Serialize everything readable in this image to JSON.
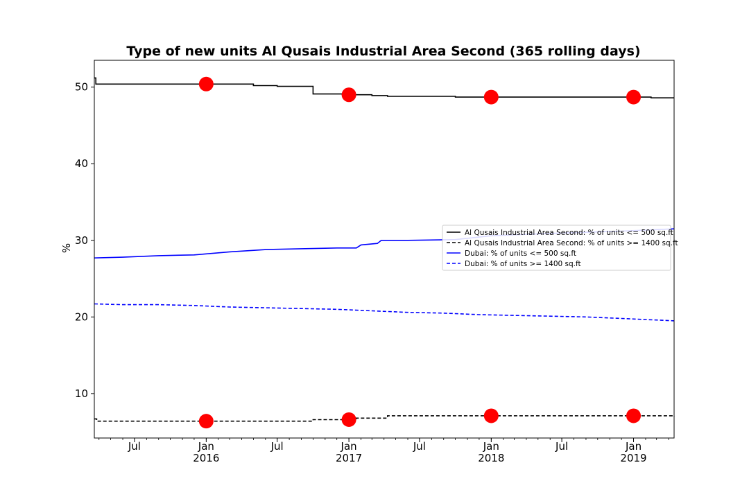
{
  "chart_data": {
    "type": "line",
    "title": "Type of new units Al Qusais Industrial Area Second (365 rolling days)",
    "xlabel": "",
    "ylabel": "%",
    "xlim": [
      "2015-03-20",
      "2019-04-15"
    ],
    "ylim": [
      4.2,
      53.5
    ],
    "grid": false,
    "legend_position": "right",
    "y_ticks": [
      10,
      20,
      30,
      40,
      50
    ],
    "x_ticks": [
      {
        "date": "2015-07-01",
        "label": "Jul",
        "year": ""
      },
      {
        "date": "2016-01-01",
        "label": "Jan",
        "year": "2016"
      },
      {
        "date": "2016-07-01",
        "label": "Jul",
        "year": ""
      },
      {
        "date": "2017-01-01",
        "label": "Jan",
        "year": "2017"
      },
      {
        "date": "2017-07-01",
        "label": "Jul",
        "year": ""
      },
      {
        "date": "2018-01-01",
        "label": "Jan",
        "year": "2018"
      },
      {
        "date": "2018-07-01",
        "label": "Jul",
        "year": ""
      },
      {
        "date": "2019-01-01",
        "label": "Jan",
        "year": "2019"
      }
    ],
    "series": [
      {
        "name": "Al Qusais Industrial Area Second: % of units <= 500 sq.ft",
        "color": "#000000",
        "dash": "solid",
        "step": true,
        "points": [
          [
            "2015-03-20",
            51.2
          ],
          [
            "2015-03-24",
            50.4
          ],
          [
            "2015-06-01",
            50.4
          ],
          [
            "2015-10-01",
            50.4
          ],
          [
            "2016-01-01",
            50.4
          ],
          [
            "2016-03-01",
            50.4
          ],
          [
            "2016-05-01",
            50.2
          ],
          [
            "2016-07-01",
            50.1
          ],
          [
            "2016-09-22",
            50.1
          ],
          [
            "2016-10-01",
            49.1
          ],
          [
            "2016-12-15",
            49.0
          ],
          [
            "2017-03-01",
            48.9
          ],
          [
            "2017-04-10",
            48.8
          ],
          [
            "2017-10-01",
            48.7
          ],
          [
            "2018-01-01",
            48.7
          ],
          [
            "2018-07-01",
            48.7
          ],
          [
            "2019-01-01",
            48.7
          ],
          [
            "2019-02-15",
            48.6
          ],
          [
            "2019-04-15",
            48.6
          ]
        ]
      },
      {
        "name": "Al Qusais Industrial Area Second: % of units >= 1400 sq.ft",
        "color": "#000000",
        "dash": "dashed",
        "step": true,
        "points": [
          [
            "2015-03-20",
            6.7
          ],
          [
            "2015-03-26",
            6.4
          ],
          [
            "2016-01-01",
            6.4
          ],
          [
            "2016-06-01",
            6.4
          ],
          [
            "2016-09-28",
            6.4
          ],
          [
            "2016-10-01",
            6.6
          ],
          [
            "2017-01-01",
            6.6
          ],
          [
            "2017-01-20",
            6.8
          ],
          [
            "2017-04-05",
            6.8
          ],
          [
            "2017-04-10",
            7.1
          ],
          [
            "2018-01-01",
            7.1
          ],
          [
            "2019-01-01",
            7.1
          ],
          [
            "2019-04-15",
            7.0
          ]
        ]
      },
      {
        "name": "Dubai: % of units <= 500 sq.ft",
        "color": "#0000ff",
        "dash": "solid",
        "step": false,
        "points": [
          [
            "2015-03-20",
            27.7
          ],
          [
            "2015-06-01",
            27.8
          ],
          [
            "2015-09-01",
            28.0
          ],
          [
            "2015-12-01",
            28.1
          ],
          [
            "2016-03-01",
            28.5
          ],
          [
            "2016-06-01",
            28.8
          ],
          [
            "2016-09-01",
            28.9
          ],
          [
            "2016-12-01",
            29.0
          ],
          [
            "2017-01-20",
            29.0
          ],
          [
            "2017-02-01",
            29.4
          ],
          [
            "2017-03-15",
            29.6
          ],
          [
            "2017-03-25",
            30.0
          ],
          [
            "2017-06-01",
            30.0
          ],
          [
            "2017-10-01",
            30.1
          ],
          [
            "2018-01-01",
            30.6
          ],
          [
            "2018-06-01",
            30.9
          ],
          [
            "2018-12-01",
            31.2
          ],
          [
            "2019-04-15",
            31.5
          ]
        ]
      },
      {
        "name": "Dubai: % of units >= 1400 sq.ft",
        "color": "#0000ff",
        "dash": "dashed",
        "step": false,
        "points": [
          [
            "2015-03-20",
            21.7
          ],
          [
            "2015-06-01",
            21.6
          ],
          [
            "2015-09-01",
            21.6
          ],
          [
            "2015-12-01",
            21.5
          ],
          [
            "2016-03-01",
            21.3
          ],
          [
            "2016-06-01",
            21.2
          ],
          [
            "2016-09-01",
            21.1
          ],
          [
            "2016-12-01",
            21.0
          ],
          [
            "2017-03-01",
            20.8
          ],
          [
            "2017-06-01",
            20.6
          ],
          [
            "2017-09-01",
            20.5
          ],
          [
            "2017-12-01",
            20.3
          ],
          [
            "2018-03-01",
            20.2
          ],
          [
            "2018-06-01",
            20.1
          ],
          [
            "2018-09-01",
            20.0
          ],
          [
            "2018-12-01",
            19.8
          ],
          [
            "2019-04-15",
            19.5
          ]
        ]
      }
    ],
    "markers": {
      "color": "#ff0000",
      "points": [
        [
          "2016-01-01",
          50.4
        ],
        [
          "2017-01-01",
          49.0
        ],
        [
          "2018-01-01",
          48.7
        ],
        [
          "2019-01-01",
          48.7
        ],
        [
          "2016-01-01",
          6.4
        ],
        [
          "2017-01-01",
          6.6
        ],
        [
          "2018-01-01",
          7.1
        ],
        [
          "2019-01-01",
          7.1
        ]
      ]
    }
  }
}
